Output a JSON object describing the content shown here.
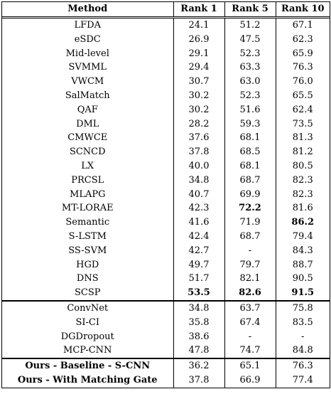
{
  "headers": [
    "Method",
    "Rank 1",
    "Rank 5",
    "Rank 10"
  ],
  "groups": [
    {
      "rows": [
        {
          "method": "LFDA",
          "r1": "24.1",
          "r5": "51.2",
          "r10": "67.1"
        },
        {
          "method": "eSDC",
          "r1": "26.9",
          "r5": "47.5",
          "r10": "62.3"
        },
        {
          "method": "Mid-level",
          "r1": "29.1",
          "r5": "52.3",
          "r10": "65.9"
        },
        {
          "method": "SVMML",
          "r1": "29.4",
          "r5": "63.3",
          "r10": "76.3"
        },
        {
          "method": "VWCM",
          "r1": "30.7",
          "r5": "63.0",
          "r10": "76.0"
        },
        {
          "method": "SalMatch",
          "r1": "30.2",
          "r5": "52.3",
          "r10": "65.5"
        },
        {
          "method": "QAF",
          "r1": "30.2",
          "r5": "51.6",
          "r10": "62.4"
        },
        {
          "method": "DML",
          "r1": "28.2",
          "r5": "59.3",
          "r10": "73.5"
        },
        {
          "method": "CMWCE",
          "r1": "37.6",
          "r5": "68.1",
          "r10": "81.3"
        },
        {
          "method": "SCNCD",
          "r1": "37.8",
          "r5": "68.5",
          "r10": "81.2"
        },
        {
          "method": "LX",
          "r1": "40.0",
          "r5": "68.1",
          "r10": "80.5"
        },
        {
          "method": "PRCSL",
          "r1": "34.8",
          "r5": "68.7",
          "r10": "82.3"
        },
        {
          "method": "MLAPG",
          "r1": "40.7",
          "r5": "69.9",
          "r10": "82.3"
        },
        {
          "method": "MT-LORAE",
          "r1": "42.3",
          "r5": "72.2",
          "r10": "81.6",
          "bold": [
            "r5"
          ]
        },
        {
          "method": "Semantic",
          "r1": "41.6",
          "r5": "71.9",
          "r10": "86.2",
          "bold": [
            "r10"
          ]
        },
        {
          "method": "S-LSTM",
          "r1": "42.4",
          "r5": "68.7",
          "r10": "79.4"
        },
        {
          "method": "SS-SVM",
          "r1": "42.7",
          "r5": "-",
          "r10": "84.3"
        },
        {
          "method": "HGD",
          "r1": "49.7",
          "r5": "79.7",
          "r10": "88.7"
        },
        {
          "method": "DNS",
          "r1": "51.7",
          "r5": "82.1",
          "r10": "90.5"
        },
        {
          "method": "SCSP",
          "r1": "53.5",
          "r5": "82.6",
          "r10": "91.5",
          "bold": [
            "r1",
            "r5",
            "r10"
          ]
        }
      ]
    },
    {
      "rows": [
        {
          "method": "ConvNet",
          "r1": "34.8",
          "r5": "63.7",
          "r10": "75.8"
        },
        {
          "method": "SI-CI",
          "r1": "35.8",
          "r5": "67.4",
          "r10": "83.5"
        },
        {
          "method": "DGDropout",
          "r1": "38.6",
          "r5": "-",
          "r10": "-"
        },
        {
          "method": "MCP-CNN",
          "r1": "47.8",
          "r5": "74.7",
          "r10": "84.8"
        }
      ]
    },
    {
      "rows": [
        {
          "method": "Ours - Baseline - S-CNN",
          "r1": "36.2",
          "r5": "65.1",
          "r10": "76.3",
          "bold": [
            "method"
          ]
        },
        {
          "method": "Ours - With Matching Gate",
          "r1": "37.8",
          "r5": "66.9",
          "r10": "77.4",
          "bold": [
            "method"
          ]
        }
      ]
    }
  ]
}
